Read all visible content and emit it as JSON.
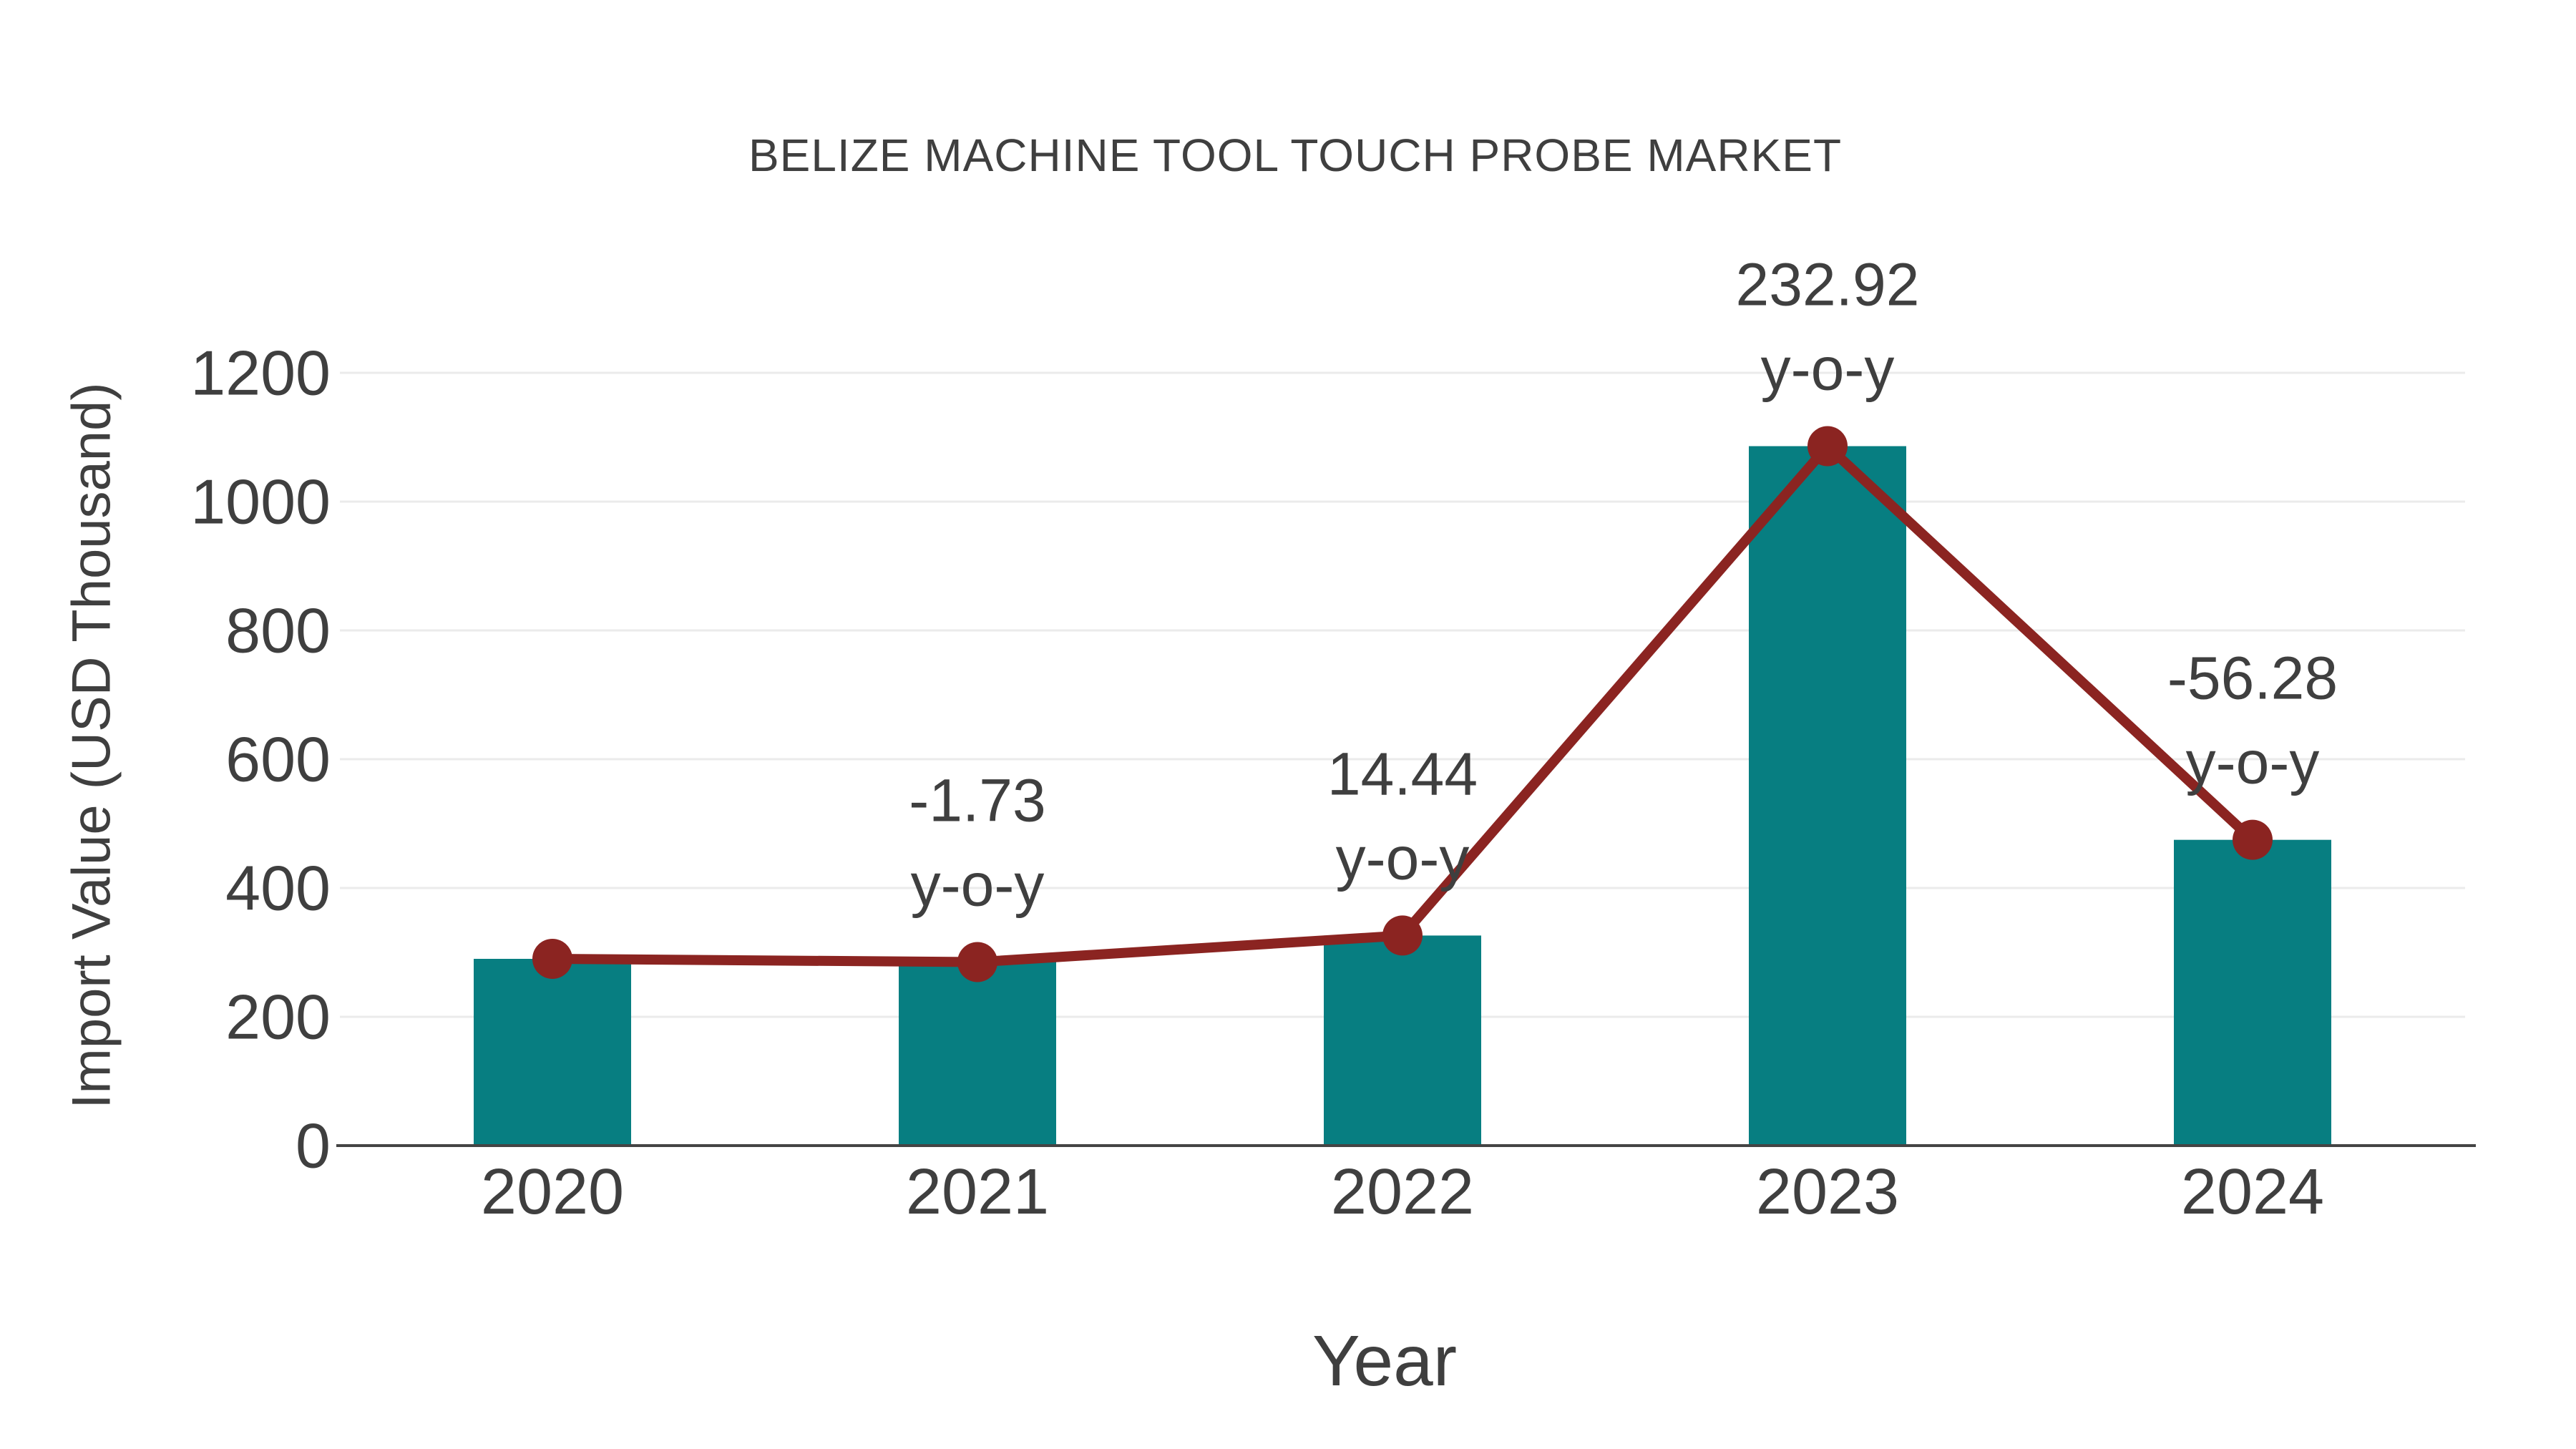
{
  "chart_data": {
    "type": "bar",
    "title": "BELIZE MACHINE TOOL TOUCH PROBE MARKET",
    "xlabel": "Year",
    "ylabel": "Import Value (USD Thousand)",
    "categories": [
      "2020",
      "2021",
      "2022",
      "2023",
      "2024"
    ],
    "series": [
      {
        "name": "import-value-bars",
        "type": "bar",
        "values": [
          290,
          285,
          326.2,
          1086.1,
          474.8
        ]
      },
      {
        "name": "import-value-trend",
        "type": "line",
        "values": [
          290,
          285,
          326.2,
          1086.1,
          474.8
        ]
      }
    ],
    "annotations": [
      {
        "category": "2021",
        "lines": [
          "-1.73",
          "y-o-y"
        ]
      },
      {
        "category": "2022",
        "lines": [
          "14.44",
          "y-o-y"
        ]
      },
      {
        "category": "2023",
        "lines": [
          "232.92",
          "y-o-y"
        ]
      },
      {
        "category": "2024",
        "lines": [
          "-56.28",
          "y-o-y"
        ]
      }
    ],
    "yticks": [
      0,
      200,
      400,
      600,
      800,
      1000,
      1200
    ],
    "ylim": [
      0,
      1200
    ],
    "grid": true,
    "legend_position": "none",
    "colors": {
      "bar": "#077e81",
      "line": "#8b2421",
      "marker": "#8b2421",
      "grid": "#ebebeb",
      "axis": "#444444",
      "text": "#3f3f3f",
      "background": "#ffffff"
    }
  }
}
